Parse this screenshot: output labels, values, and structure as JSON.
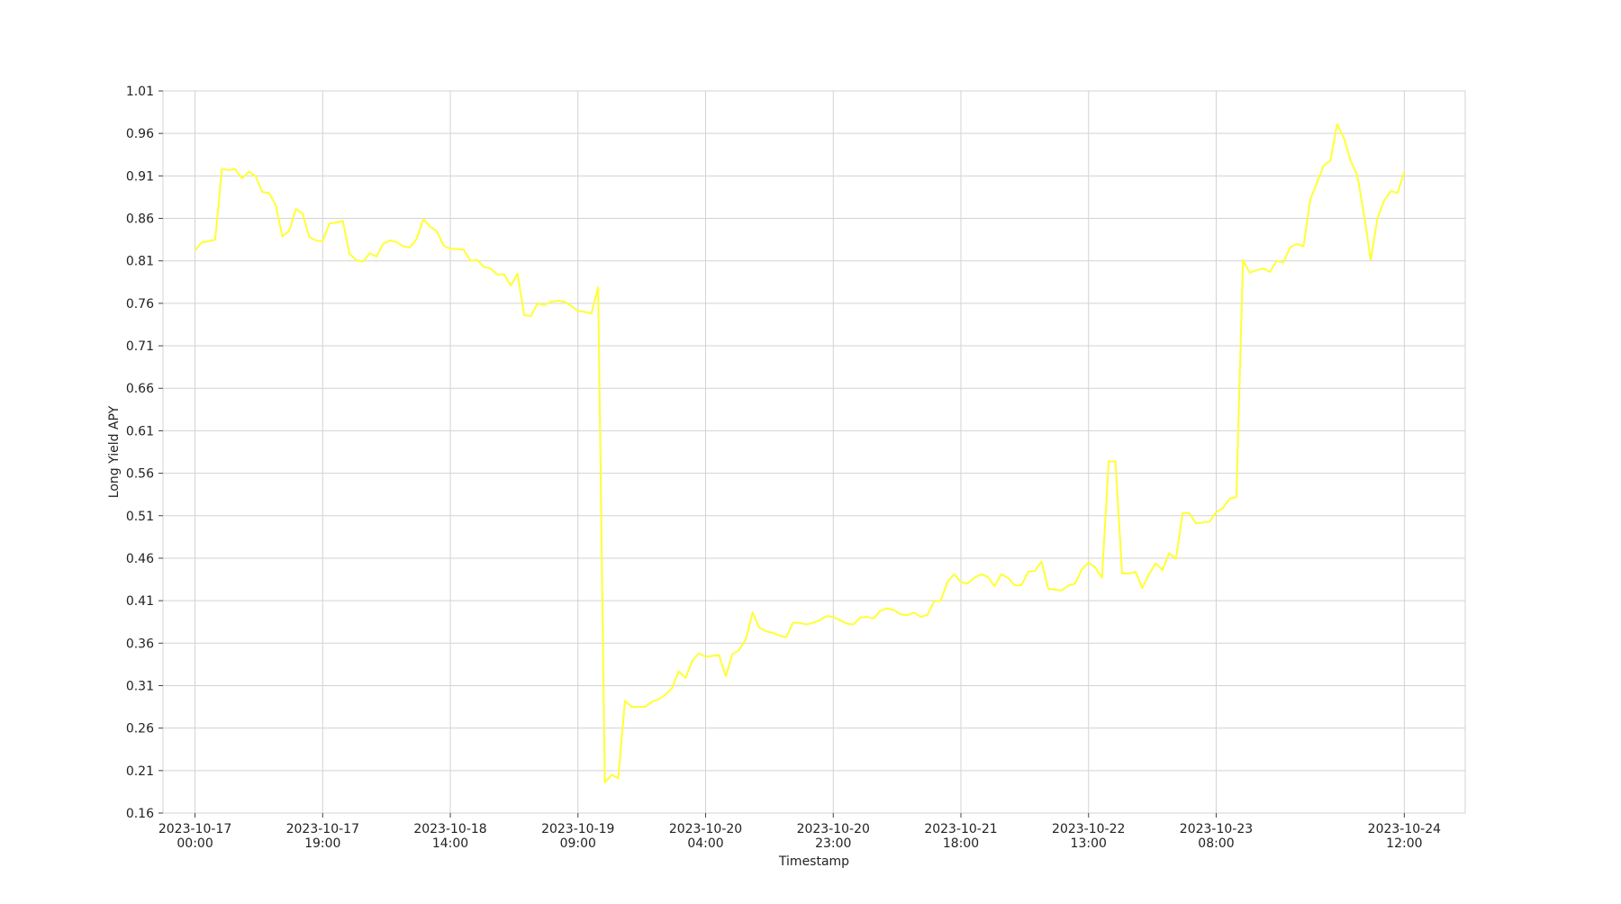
{
  "chart_data": {
    "type": "line",
    "title": "",
    "xlabel": "Timestamp",
    "ylabel": "Long Yield APY",
    "grid": true,
    "legend": "none",
    "line_color": "#ffff33",
    "grid_color": "#d3d3d3",
    "ylim": [
      0.16,
      1.01
    ],
    "y_ticks": [
      0.16,
      0.21,
      0.26,
      0.31,
      0.36,
      0.41,
      0.46,
      0.51,
      0.56,
      0.61,
      0.66,
      0.71,
      0.76,
      0.81,
      0.86,
      0.91,
      0.96,
      1.01
    ],
    "y_tick_labels": [
      "0.16",
      "0.21",
      "0.26",
      "0.31",
      "0.36",
      "0.41",
      "0.46",
      "0.51",
      "0.56",
      "0.61",
      "0.66",
      "0.71",
      "0.76",
      "0.81",
      "0.86",
      "0.91",
      "0.96",
      "1.01"
    ],
    "xlim": [
      "2023-10-16 19:14",
      "2023-10-24 21:04"
    ],
    "x_ticks": [
      {
        "date": "2023-10-17",
        "time": "00:00",
        "value": "2023-10-17 00:00"
      },
      {
        "date": "2023-10-17",
        "time": "19:00",
        "value": "2023-10-17 19:00"
      },
      {
        "date": "2023-10-18",
        "time": "14:00",
        "value": "2023-10-18 14:00"
      },
      {
        "date": "2023-10-19",
        "time": "09:00",
        "value": "2023-10-19 09:00"
      },
      {
        "date": "2023-10-20",
        "time": "04:00",
        "value": "2023-10-20 04:00"
      },
      {
        "date": "2023-10-20",
        "time": "23:00",
        "value": "2023-10-20 23:00"
      },
      {
        "date": "2023-10-21",
        "time": "18:00",
        "value": "2023-10-21 18:00"
      },
      {
        "date": "2023-10-22",
        "time": "13:00",
        "value": "2023-10-22 13:00"
      },
      {
        "date": "2023-10-23",
        "time": "08:00",
        "value": "2023-10-23 08:00"
      },
      {
        "date": "2023-10-24",
        "time": "12:00",
        "value": "2023-10-24 12:00"
      }
    ],
    "series": [
      {
        "x": [
          "2023-10-17 00:00",
          "2023-10-17 01:00",
          "2023-10-17 02:00",
          "2023-10-17 03:00",
          "2023-10-17 04:00",
          "2023-10-17 05:00",
          "2023-10-17 06:00",
          "2023-10-17 07:00",
          "2023-10-17 08:00",
          "2023-10-17 09:00",
          "2023-10-17 10:00",
          "2023-10-17 11:00",
          "2023-10-17 12:00",
          "2023-10-17 13:00",
          "2023-10-17 14:00",
          "2023-10-17 15:00",
          "2023-10-17 16:00",
          "2023-10-17 17:00",
          "2023-10-17 18:00",
          "2023-10-17 19:00",
          "2023-10-17 20:00",
          "2023-10-17 21:00",
          "2023-10-17 22:00",
          "2023-10-17 23:00",
          "2023-10-18 00:00",
          "2023-10-18 01:00",
          "2023-10-18 02:00",
          "2023-10-18 03:00",
          "2023-10-18 04:00",
          "2023-10-18 05:00",
          "2023-10-18 06:00",
          "2023-10-18 07:00",
          "2023-10-18 08:00",
          "2023-10-18 09:00",
          "2023-10-18 10:00",
          "2023-10-18 11:00",
          "2023-10-18 12:00",
          "2023-10-18 13:00",
          "2023-10-18 14:00",
          "2023-10-18 15:00",
          "2023-10-18 16:00",
          "2023-10-18 17:00",
          "2023-10-18 18:00",
          "2023-10-18 19:00",
          "2023-10-18 20:00",
          "2023-10-18 21:00",
          "2023-10-18 22:00",
          "2023-10-18 23:00",
          "2023-10-19 00:00",
          "2023-10-19 01:00",
          "2023-10-19 02:00",
          "2023-10-19 03:00",
          "2023-10-19 04:00",
          "2023-10-19 05:00",
          "2023-10-19 06:00",
          "2023-10-19 07:00",
          "2023-10-19 08:00",
          "2023-10-19 09:00",
          "2023-10-19 10:00",
          "2023-10-19 11:00",
          "2023-10-19 12:00",
          "2023-10-19 13:00",
          "2023-10-19 14:00",
          "2023-10-19 15:00",
          "2023-10-19 16:00",
          "2023-10-19 17:00",
          "2023-10-19 18:00",
          "2023-10-19 19:00",
          "2023-10-19 20:00",
          "2023-10-19 21:00",
          "2023-10-19 22:00",
          "2023-10-19 23:00",
          "2023-10-20 00:00",
          "2023-10-20 01:00",
          "2023-10-20 02:00",
          "2023-10-20 03:00",
          "2023-10-20 04:00",
          "2023-10-20 05:00",
          "2023-10-20 06:00",
          "2023-10-20 07:00",
          "2023-10-20 08:00",
          "2023-10-20 09:00",
          "2023-10-20 10:00",
          "2023-10-20 11:00",
          "2023-10-20 12:00",
          "2023-10-20 13:00",
          "2023-10-20 14:00",
          "2023-10-20 15:00",
          "2023-10-20 16:00",
          "2023-10-20 17:00",
          "2023-10-20 18:00",
          "2023-10-20 19:00",
          "2023-10-20 20:00",
          "2023-10-20 21:00",
          "2023-10-20 22:00",
          "2023-10-20 23:00",
          "2023-10-21 00:00",
          "2023-10-21 01:00",
          "2023-10-21 02:00",
          "2023-10-21 03:00",
          "2023-10-21 04:00",
          "2023-10-21 05:00",
          "2023-10-21 06:00",
          "2023-10-21 07:00",
          "2023-10-21 08:00",
          "2023-10-21 09:00",
          "2023-10-21 10:00",
          "2023-10-21 11:00",
          "2023-10-21 12:00",
          "2023-10-21 13:00",
          "2023-10-21 14:00",
          "2023-10-21 15:00",
          "2023-10-21 16:00",
          "2023-10-21 17:00",
          "2023-10-21 18:00",
          "2023-10-21 19:00",
          "2023-10-21 20:00",
          "2023-10-21 21:00",
          "2023-10-21 22:00",
          "2023-10-21 23:00",
          "2023-10-22 00:00",
          "2023-10-22 01:00",
          "2023-10-22 02:00",
          "2023-10-22 03:00",
          "2023-10-22 04:00",
          "2023-10-22 05:00",
          "2023-10-22 06:00",
          "2023-10-22 07:00",
          "2023-10-22 08:00",
          "2023-10-22 09:00",
          "2023-10-22 10:00",
          "2023-10-22 11:00",
          "2023-10-22 12:00",
          "2023-10-22 13:00",
          "2023-10-22 14:00",
          "2023-10-22 15:00",
          "2023-10-22 16:00",
          "2023-10-22 17:00",
          "2023-10-22 18:00",
          "2023-10-22 19:00",
          "2023-10-22 20:00",
          "2023-10-22 21:00",
          "2023-10-22 22:00",
          "2023-10-22 23:00",
          "2023-10-23 00:00",
          "2023-10-23 01:00",
          "2023-10-23 02:00",
          "2023-10-23 03:00",
          "2023-10-23 04:00",
          "2023-10-23 05:00",
          "2023-10-23 06:00",
          "2023-10-23 07:00",
          "2023-10-23 08:00",
          "2023-10-23 09:00",
          "2023-10-23 10:00",
          "2023-10-23 11:00",
          "2023-10-23 12:00",
          "2023-10-23 13:00",
          "2023-10-23 14:00",
          "2023-10-23 15:00",
          "2023-10-23 16:00",
          "2023-10-23 17:00",
          "2023-10-23 18:00",
          "2023-10-23 19:00",
          "2023-10-23 20:00",
          "2023-10-23 21:00",
          "2023-10-23 22:00",
          "2023-10-23 23:00",
          "2023-10-24 00:00",
          "2023-10-24 01:00",
          "2023-10-24 02:00",
          "2023-10-24 03:00",
          "2023-10-24 04:00",
          "2023-10-24 05:00",
          "2023-10-24 06:00",
          "2023-10-24 07:00",
          "2023-10-24 08:00",
          "2023-10-24 09:00",
          "2023-10-24 10:00",
          "2023-10-24 11:00",
          "2023-10-24 12:00"
        ],
        "values": [
          0.822,
          0.832,
          0.833,
          0.835,
          0.918,
          0.917,
          0.918,
          0.907,
          0.915,
          0.91,
          0.891,
          0.89,
          0.876,
          0.839,
          0.845,
          0.871,
          0.866,
          0.838,
          0.834,
          0.833,
          0.854,
          0.855,
          0.857,
          0.818,
          0.811,
          0.809,
          0.819,
          0.815,
          0.83,
          0.834,
          0.832,
          0.827,
          0.826,
          0.836,
          0.859,
          0.85,
          0.845,
          0.828,
          0.824,
          0.824,
          0.823,
          0.81,
          0.811,
          0.803,
          0.801,
          0.794,
          0.794,
          0.781,
          0.795,
          0.746,
          0.745,
          0.76,
          0.758,
          0.762,
          0.763,
          0.762,
          0.757,
          0.751,
          0.75,
          0.748,
          0.779,
          0.196,
          0.205,
          0.201,
          0.292,
          0.285,
          0.285,
          0.285,
          0.291,
          0.294,
          0.299,
          0.307,
          0.327,
          0.319,
          0.339,
          0.348,
          0.344,
          0.345,
          0.346,
          0.321,
          0.347,
          0.352,
          0.365,
          0.396,
          0.378,
          0.374,
          0.372,
          0.369,
          0.367,
          0.384,
          0.384,
          0.382,
          0.384,
          0.387,
          0.392,
          0.391,
          0.387,
          0.383,
          0.382,
          0.39,
          0.391,
          0.389,
          0.398,
          0.401,
          0.399,
          0.394,
          0.393,
          0.396,
          0.391,
          0.393,
          0.409,
          0.41,
          0.432,
          0.441,
          0.432,
          0.43,
          0.437,
          0.441,
          0.438,
          0.427,
          0.441,
          0.437,
          0.428,
          0.428,
          0.444,
          0.445,
          0.456,
          0.424,
          0.423,
          0.422,
          0.428,
          0.43,
          0.447,
          0.455,
          0.449,
          0.437,
          0.574,
          0.574,
          0.442,
          0.442,
          0.444,
          0.425,
          0.441,
          0.454,
          0.446,
          0.466,
          0.459,
          0.513,
          0.513,
          0.501,
          0.502,
          0.503,
          0.514,
          0.519,
          0.53,
          0.532,
          0.811,
          0.796,
          0.799,
          0.801,
          0.797,
          0.81,
          0.808,
          0.826,
          0.83,
          0.827,
          0.882,
          0.902,
          0.922,
          0.928,
          0.971,
          0.955,
          0.928,
          0.911,
          0.865,
          0.811,
          0.86,
          0.881,
          0.892,
          0.89,
          0.915
        ]
      }
    ]
  }
}
